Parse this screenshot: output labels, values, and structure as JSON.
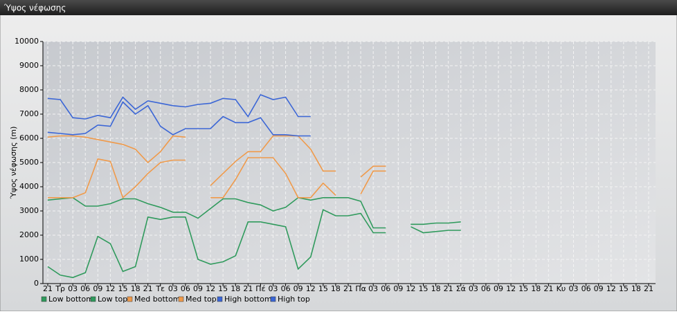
{
  "chart_data": {
    "type": "line",
    "window_title": "Ύψος νέφωσης",
    "ylabel": "Ύψος νέφωσης (m)",
    "categories": [
      "21",
      "Τρ",
      "03",
      "06",
      "09",
      "12",
      "15",
      "18",
      "21",
      "Τε",
      "03",
      "06",
      "09",
      "12",
      "15",
      "18",
      "21",
      "Πέ",
      "03",
      "06",
      "09",
      "12",
      "15",
      "18",
      "21",
      "Πα",
      "03",
      "06",
      "09",
      "12",
      "15",
      "18",
      "21",
      "Σά",
      "03",
      "06",
      "09",
      "12",
      "15",
      "18",
      "21",
      "Κυ",
      "03",
      "06",
      "09",
      "12",
      "15",
      "18",
      "21"
    ],
    "ylim": [
      0,
      10000
    ],
    "yticks": [
      0,
      1000,
      2000,
      3000,
      4000,
      5000,
      6000,
      7000,
      8000,
      9000,
      10000
    ],
    "grid": true,
    "series": [
      {
        "name": "Low bottom",
        "color": "#2f9a5c",
        "values": [
          700,
          350,
          250,
          450,
          1950,
          1650,
          500,
          700,
          2750,
          2650,
          2750,
          2750,
          1000,
          800,
          900,
          1150,
          2550,
          2550,
          2450,
          2350,
          600,
          1100,
          3050,
          2800,
          2800,
          2900,
          2100,
          2100,
          null,
          2350,
          2100,
          2150,
          2200,
          2200,
          null,
          null,
          null,
          null,
          null,
          null,
          null,
          null,
          null,
          null,
          null,
          null,
          null,
          null,
          null
        ]
      },
      {
        "name": "Low top",
        "color": "#2f9a5c",
        "values": [
          3450,
          3500,
          3550,
          3200,
          3200,
          3300,
          3500,
          3500,
          3300,
          3150,
          2950,
          2950,
          2700,
          3100,
          3500,
          3500,
          3350,
          3250,
          3000,
          3150,
          3550,
          3450,
          3550,
          3550,
          3550,
          3400,
          2300,
          2300,
          null,
          2450,
          2450,
          2500,
          2500,
          2550,
          null,
          null,
          null,
          null,
          null,
          null,
          null,
          null,
          null,
          null,
          null,
          null,
          null,
          null,
          null
        ]
      },
      {
        "name": "Med bottom",
        "color": "#f09a4a",
        "values": [
          3550,
          3550,
          3550,
          3750,
          5150,
          5050,
          3550,
          4000,
          4550,
          5000,
          5100,
          5100,
          null,
          3550,
          3550,
          4300,
          5200,
          5200,
          5200,
          4550,
          3550,
          3550,
          4150,
          3650,
          null,
          3700,
          4650,
          4650,
          null,
          null,
          null,
          null,
          null,
          null,
          null,
          null,
          null,
          null,
          null,
          null,
          null,
          null,
          null,
          null,
          null,
          null,
          null,
          null,
          null
        ]
      },
      {
        "name": "Med top",
        "color": "#f09a4a",
        "values": [
          6050,
          6100,
          6100,
          6050,
          5950,
          5850,
          5750,
          5550,
          5000,
          5450,
          6100,
          6050,
          null,
          4050,
          4550,
          5050,
          5450,
          5450,
          6100,
          6100,
          6100,
          5550,
          4650,
          4650,
          null,
          4400,
          4850,
          4850,
          null,
          null,
          null,
          null,
          null,
          null,
          null,
          null,
          null,
          null,
          null,
          null,
          null,
          null,
          null,
          null,
          null,
          null,
          null,
          null,
          null
        ]
      },
      {
        "name": "High bottom",
        "color": "#3b66d6",
        "values": [
          6250,
          6200,
          6150,
          6200,
          6550,
          6500,
          7500,
          7000,
          7350,
          6500,
          6150,
          6400,
          6400,
          6400,
          6900,
          6650,
          6650,
          6850,
          6150,
          6150,
          6100,
          6100,
          null,
          null,
          null,
          null,
          null,
          null,
          null,
          null,
          null,
          null,
          null,
          null,
          null,
          null,
          null,
          null,
          null,
          null,
          null,
          null,
          null,
          null,
          null,
          null,
          null,
          null,
          null
        ]
      },
      {
        "name": "High top",
        "color": "#3b66d6",
        "values": [
          7650,
          7600,
          6850,
          6800,
          6950,
          6850,
          7700,
          7200,
          7550,
          7450,
          7350,
          7300,
          7400,
          7450,
          7650,
          7600,
          6900,
          7800,
          7600,
          7700,
          6900,
          6900,
          null,
          null,
          null,
          null,
          null,
          null,
          null,
          null,
          null,
          null,
          null,
          null,
          null,
          null,
          null,
          null,
          null,
          null,
          null,
          null,
          null,
          null,
          null,
          null,
          null,
          null,
          null
        ]
      }
    ]
  }
}
